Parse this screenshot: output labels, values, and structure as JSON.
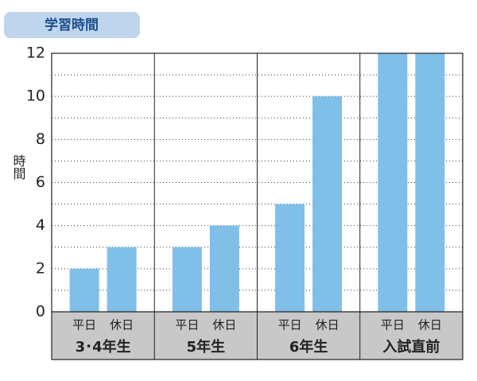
{
  "chart_data": {
    "type": "bar",
    "title": "学習時間",
    "y_label": "時間",
    "categories": [
      "3･4年生",
      "5年生",
      "6年生",
      "入試直前"
    ],
    "series": [
      {
        "name": "平日",
        "color": "#80bfe8",
        "values": [
          2,
          3,
          5,
          12
        ]
      },
      {
        "name": "休日",
        "color": "#80bfe8",
        "values": [
          3,
          4,
          10,
          12
        ]
      }
    ],
    "ylim": [
      0,
      12
    ],
    "yticks": [
      0,
      2,
      4,
      6,
      8,
      10,
      12
    ],
    "minor_yticks": [
      1,
      3,
      5,
      7,
      9,
      11
    ],
    "grid": true
  }
}
